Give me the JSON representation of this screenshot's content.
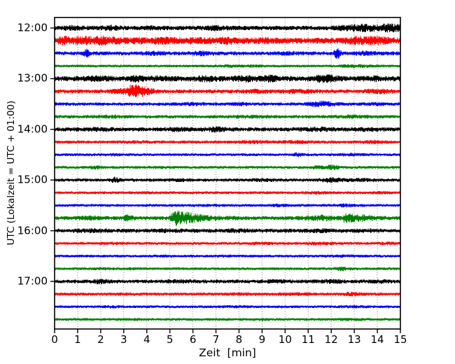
{
  "chart_data": {
    "type": "line",
    "subtype": "helicorder-dayplot",
    "title": "",
    "xlabel": "Zeit  [min]",
    "ylabel": "UTC (Lokalzeit = UTC + 01:00)",
    "xlim": [
      0,
      15
    ],
    "minutes_per_line": 15,
    "lines_per_hour": 4,
    "grid": "dotted-vertical",
    "x_ticks": [
      "0",
      "1",
      "2",
      "3",
      "4",
      "5",
      "6",
      "7",
      "8",
      "9",
      "10",
      "11",
      "12",
      "13",
      "14",
      "15"
    ],
    "y_ticks": [
      "12:00",
      "13:00",
      "14:00",
      "15:00",
      "16:00",
      "17:00"
    ],
    "colors": {
      "k": "#000000",
      "r": "#ff0000",
      "b": "#0000ff",
      "g": "#008000"
    },
    "grid_color": "#888888",
    "axis_color": "#000000",
    "traces": [
      {
        "start": "12:00",
        "color": "k",
        "base_amp": 3.2,
        "events": [
          [
            0.8,
            1.5,
            0.3,
            0.3
          ],
          [
            2.5,
            1.5,
            0.3,
            0.3
          ],
          [
            4.2,
            1.0,
            0.3,
            0.3
          ],
          [
            7.0,
            1.5,
            0.4,
            0.4
          ],
          [
            12.6,
            1.5,
            0.3,
            0.3
          ],
          [
            13.3,
            3.0,
            0.3,
            0.5
          ],
          [
            14.3,
            3.0,
            0.25,
            0.3
          ],
          [
            14.8,
            2.5,
            0.2,
            0.3
          ]
        ]
      },
      {
        "start": "12:15",
        "color": "r",
        "base_amp": 4.2,
        "events": [
          [
            0.35,
            3.0,
            0.15,
            0.25
          ],
          [
            1.2,
            3.5,
            0.25,
            0.3
          ],
          [
            2.0,
            3.5,
            0.25,
            0.3
          ],
          [
            2.75,
            2.0,
            0.2,
            0.25
          ],
          [
            3.6,
            1.5,
            0.25,
            0.3
          ],
          [
            4.6,
            2.0,
            0.3,
            0.3
          ],
          [
            5.4,
            1.5,
            0.25,
            0.3
          ],
          [
            6.3,
            1.5,
            0.3,
            0.4
          ],
          [
            7.4,
            2.0,
            0.3,
            0.5
          ],
          [
            9.0,
            1.0,
            0.4,
            0.4
          ],
          [
            13.1,
            2.8,
            0.35,
            0.4
          ],
          [
            13.9,
            2.8,
            0.3,
            0.5
          ]
        ]
      },
      {
        "start": "12:30",
        "color": "b",
        "base_amp": 2.8,
        "events": [
          [
            1.35,
            4.5,
            0.06,
            0.12
          ],
          [
            4.3,
            1.2,
            0.3,
            0.3
          ],
          [
            6.4,
            1.8,
            0.25,
            0.35
          ],
          [
            10.2,
            1.0,
            0.3,
            0.3
          ],
          [
            12.2,
            6.5,
            0.05,
            0.15
          ],
          [
            13.5,
            1.2,
            0.3,
            0.4
          ]
        ]
      },
      {
        "start": "12:45",
        "color": "g",
        "base_amp": 1.9,
        "events": [
          [
            7.6,
            0.7,
            0.3,
            0.3
          ],
          [
            8.6,
            0.7,
            0.3,
            0.3
          ],
          [
            12.9,
            1.2,
            0.4,
            0.6
          ]
        ]
      },
      {
        "start": "13:00",
        "color": "k",
        "base_amp": 3.8,
        "events": [
          [
            1.8,
            1.5,
            0.3,
            0.4
          ],
          [
            3.5,
            2.2,
            0.2,
            0.3
          ],
          [
            4.6,
            1.5,
            0.25,
            0.3
          ],
          [
            6.6,
            1.8,
            0.3,
            0.35
          ],
          [
            8.2,
            2.2,
            0.25,
            0.35
          ],
          [
            9.4,
            2.2,
            0.25,
            0.3
          ],
          [
            11.7,
            3.0,
            0.3,
            0.4
          ],
          [
            13.8,
            1.2,
            0.3,
            0.3
          ]
        ]
      },
      {
        "start": "13:15",
        "color": "r",
        "base_amp": 2.8,
        "events": [
          [
            3.05,
            2.5,
            0.35,
            0.3
          ],
          [
            3.35,
            8.5,
            0.08,
            0.5
          ],
          [
            8.7,
            1.0,
            0.3,
            0.4
          ],
          [
            10.5,
            1.2,
            0.4,
            0.5
          ],
          [
            13.9,
            1.5,
            0.4,
            0.5
          ]
        ]
      },
      {
        "start": "13:30",
        "color": "b",
        "base_amp": 2.4,
        "events": [
          [
            6.0,
            0.8,
            0.3,
            0.3
          ],
          [
            8.0,
            0.8,
            0.3,
            0.3
          ],
          [
            11.4,
            2.6,
            0.3,
            0.5
          ],
          [
            14.0,
            0.8,
            0.3,
            0.3
          ]
        ]
      },
      {
        "start": "13:45",
        "color": "g",
        "base_amp": 2.4,
        "events": [
          [
            2.3,
            1.0,
            0.4,
            0.4
          ],
          [
            8.5,
            0.8,
            0.4,
            0.4
          ],
          [
            12.9,
            1.0,
            0.4,
            0.4
          ]
        ]
      },
      {
        "start": "14:00",
        "color": "k",
        "base_amp": 3.0,
        "events": [
          [
            2.0,
            0.8,
            0.4,
            0.4
          ],
          [
            5.3,
            1.0,
            0.4,
            0.4
          ],
          [
            7.0,
            1.5,
            0.3,
            0.4
          ],
          [
            11.4,
            1.2,
            0.4,
            0.5
          ],
          [
            13.5,
            0.8,
            0.4,
            0.4
          ]
        ]
      },
      {
        "start": "14:15",
        "color": "r",
        "base_amp": 2.2,
        "events": [
          [
            3.5,
            0.6,
            0.4,
            0.4
          ],
          [
            8.6,
            1.0,
            0.4,
            0.4
          ],
          [
            10.4,
            1.2,
            0.4,
            0.5
          ],
          [
            13.8,
            1.2,
            0.4,
            0.4
          ]
        ]
      },
      {
        "start": "14:30",
        "color": "b",
        "base_amp": 2.0,
        "events": [
          [
            2.5,
            0.5,
            0.4,
            0.4
          ],
          [
            10.5,
            2.2,
            0.08,
            0.2
          ],
          [
            12.8,
            0.8,
            0.4,
            0.4
          ]
        ]
      },
      {
        "start": "14:45",
        "color": "g",
        "base_amp": 2.0,
        "events": [
          [
            1.7,
            1.6,
            0.12,
            0.2
          ],
          [
            4.5,
            0.6,
            0.3,
            0.3
          ],
          [
            11.4,
            1.4,
            0.2,
            0.3
          ],
          [
            12.0,
            2.4,
            0.1,
            0.25
          ]
        ]
      },
      {
        "start": "15:00",
        "color": "k",
        "base_amp": 2.4,
        "events": [
          [
            2.55,
            2.8,
            0.08,
            0.18
          ],
          [
            5.5,
            0.6,
            0.3,
            0.3
          ],
          [
            9.0,
            0.8,
            0.3,
            0.3
          ],
          [
            11.9,
            2.0,
            0.25,
            0.4
          ],
          [
            13.2,
            1.0,
            0.3,
            0.4
          ]
        ]
      },
      {
        "start": "15:15",
        "color": "r",
        "base_amp": 2.0,
        "events": [
          [
            4.0,
            0.5,
            0.4,
            0.4
          ],
          [
            11.3,
            0.8,
            0.4,
            0.4
          ],
          [
            14.2,
            0.6,
            0.3,
            0.3
          ]
        ]
      },
      {
        "start": "15:30",
        "color": "b",
        "base_amp": 2.0,
        "events": [
          [
            6.5,
            0.6,
            0.4,
            0.4
          ],
          [
            9.7,
            0.8,
            0.3,
            0.3
          ],
          [
            12.7,
            1.6,
            0.25,
            0.35
          ]
        ]
      },
      {
        "start": "15:45",
        "color": "g",
        "base_amp": 2.8,
        "events": [
          [
            1.5,
            1.2,
            0.4,
            0.5
          ],
          [
            3.1,
            3.2,
            0.07,
            0.2
          ],
          [
            5.15,
            8.5,
            0.07,
            0.7
          ],
          [
            6.5,
            1.0,
            0.5,
            1.0
          ],
          [
            11.5,
            2.2,
            0.5,
            0.6
          ],
          [
            12.6,
            4.5,
            0.06,
            0.3
          ],
          [
            13.3,
            2.5,
            0.3,
            0.5
          ]
        ]
      },
      {
        "start": "16:00",
        "color": "k",
        "base_amp": 2.9,
        "events": [
          [
            1.5,
            0.8,
            0.4,
            0.4
          ],
          [
            5.0,
            0.6,
            0.4,
            0.4
          ],
          [
            8.0,
            0.7,
            0.4,
            0.4
          ],
          [
            11.5,
            0.8,
            0.4,
            0.4
          ],
          [
            13.5,
            0.6,
            0.3,
            0.3
          ]
        ]
      },
      {
        "start": "16:15",
        "color": "r",
        "base_amp": 2.0,
        "events": [
          [
            2.5,
            0.5,
            0.3,
            0.3
          ],
          [
            9.0,
            0.7,
            0.4,
            0.4
          ],
          [
            11.5,
            0.9,
            0.4,
            0.5
          ],
          [
            14.5,
            0.8,
            0.3,
            0.3
          ]
        ]
      },
      {
        "start": "16:30",
        "color": "b",
        "base_amp": 1.9,
        "events": [
          [
            4.8,
            0.5,
            0.3,
            0.3
          ],
          [
            7.5,
            0.5,
            0.4,
            0.4
          ],
          [
            12.5,
            0.7,
            0.4,
            0.4
          ]
        ]
      },
      {
        "start": "16:45",
        "color": "g",
        "base_amp": 1.9,
        "events": [
          [
            2.2,
            0.7,
            0.3,
            0.3
          ],
          [
            3.2,
            0.6,
            0.3,
            0.3
          ],
          [
            12.4,
            1.6,
            0.15,
            0.3
          ]
        ]
      },
      {
        "start": "17:00",
        "color": "k",
        "base_amp": 2.7,
        "events": [
          [
            1.9,
            1.8,
            0.15,
            0.25
          ],
          [
            5.5,
            0.7,
            0.4,
            0.4
          ],
          [
            9.5,
            0.8,
            0.4,
            0.4
          ],
          [
            12.0,
            1.0,
            0.4,
            0.4
          ],
          [
            14.0,
            0.8,
            0.3,
            0.3
          ]
        ]
      },
      {
        "start": "17:15",
        "color": "r",
        "base_amp": 2.2,
        "events": [
          [
            3.0,
            0.5,
            0.4,
            0.4
          ],
          [
            8.0,
            0.6,
            0.4,
            0.4
          ],
          [
            10.5,
            0.7,
            0.4,
            0.4
          ],
          [
            12.8,
            1.4,
            0.2,
            0.35
          ]
        ]
      },
      {
        "start": "17:30",
        "color": "b",
        "base_amp": 1.9,
        "events": [
          [
            2.5,
            0.4,
            0.4,
            0.4
          ],
          [
            7.8,
            0.5,
            0.4,
            0.4
          ],
          [
            13.0,
            0.6,
            0.4,
            0.4
          ]
        ]
      },
      {
        "start": "17:45",
        "color": "g",
        "base_amp": 1.9,
        "events": [
          [
            3.5,
            0.4,
            0.4,
            0.4
          ],
          [
            9.0,
            0.5,
            0.4,
            0.4
          ],
          [
            13.0,
            0.5,
            0.4,
            0.4
          ]
        ]
      }
    ]
  }
}
